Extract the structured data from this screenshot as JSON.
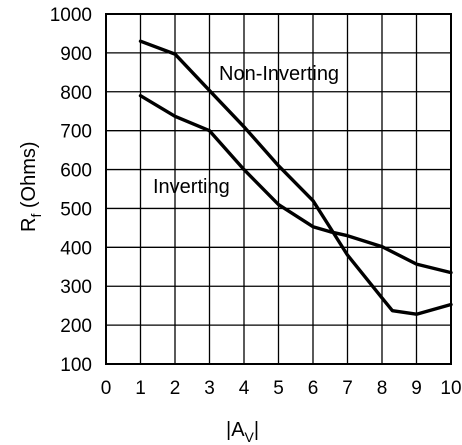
{
  "chart_data": {
    "type": "line",
    "xlabel": {
      "main": "|A",
      "sub": "V",
      "end": "|"
    },
    "ylabel": {
      "main": "R",
      "sub": "f",
      "rest": " (Ohms)"
    },
    "xlim": [
      0,
      10
    ],
    "ylim": [
      100,
      1000
    ],
    "xticks": [
      "0",
      "1",
      "2",
      "3",
      "4",
      "5",
      "6",
      "7",
      "8",
      "9",
      "10"
    ],
    "yticks": [
      "100",
      "200",
      "300",
      "400",
      "500",
      "600",
      "700",
      "800",
      "900",
      "1000"
    ],
    "grid": true,
    "series": [
      {
        "name": "Non-Inverting",
        "x": [
          1,
          2,
          3,
          4,
          5,
          6,
          6.5,
          7,
          8,
          8.3,
          9,
          10
        ],
        "y": [
          930,
          897,
          803,
          710,
          610,
          520,
          450,
          380,
          270,
          237,
          228,
          253
        ]
      },
      {
        "name": "Inverting",
        "x": [
          1,
          2,
          3,
          4,
          5,
          6,
          6.5,
          7,
          8,
          9,
          10
        ],
        "y": [
          790,
          737,
          700,
          600,
          510,
          453,
          440,
          430,
          402,
          357,
          335
        ]
      }
    ],
    "colors": {
      "line": "#000000",
      "grid": "#000000",
      "background": "#ffffff"
    }
  }
}
